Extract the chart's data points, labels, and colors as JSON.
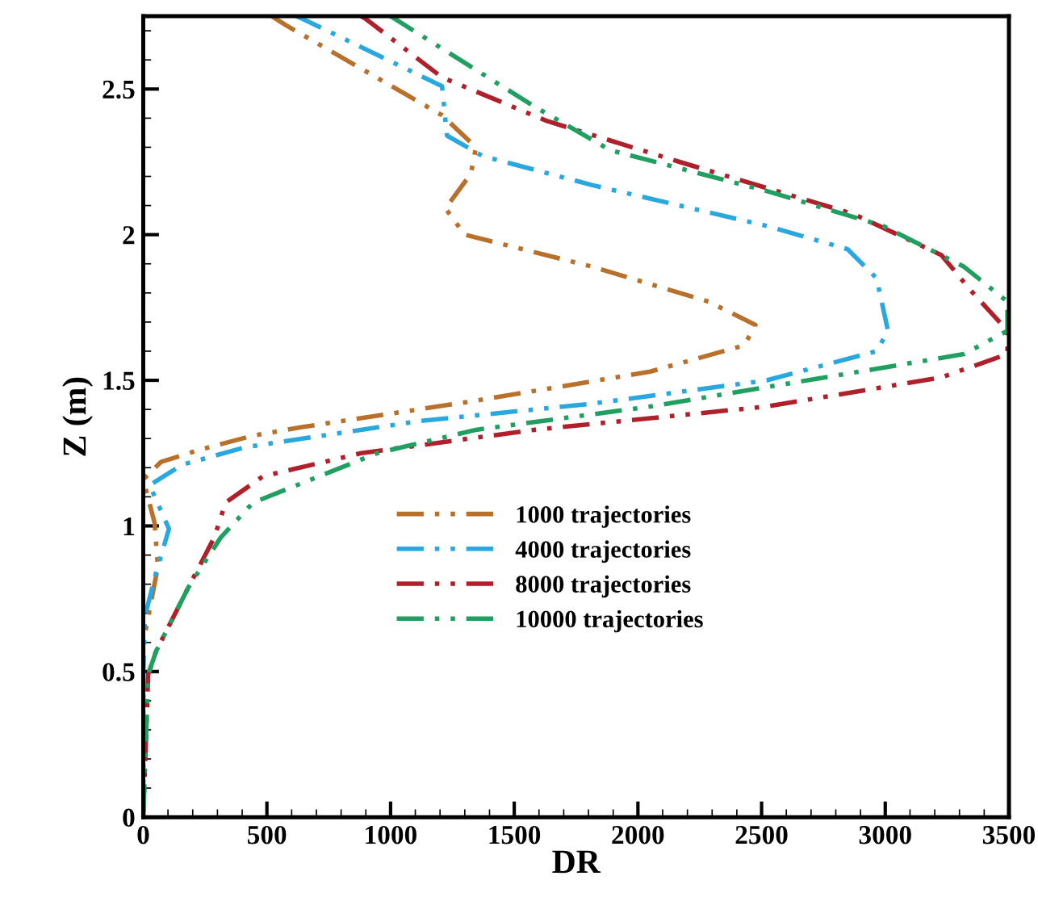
{
  "chart_data": {
    "type": "line",
    "xlabel": "DR",
    "ylabel": "Z (m)",
    "xlim": [
      0,
      3500
    ],
    "ylim": [
      0,
      2.75
    ],
    "xticks": [
      0,
      500,
      1000,
      1500,
      2000,
      2500,
      3000,
      3500
    ],
    "yticks": [
      0,
      0.5,
      1,
      1.5,
      2,
      2.5
    ],
    "grid": false,
    "legend": "center",
    "line_style": "dashed",
    "marker": "none",
    "series": [
      {
        "name": "1000 trajectories",
        "color": "#b8702a",
        "x": [
          520,
          575,
          1208,
          1345,
          1325,
          1222,
          1300,
          1816,
          2286,
          2475,
          2430,
          2050,
          1345,
          647,
          444,
          222,
          72,
          0,
          46,
          59,
          0,
          0
        ],
        "values": [
          2.75,
          2.72,
          2.41,
          2.3,
          2.21,
          2.09,
          2.0,
          1.89,
          1.77,
          1.69,
          1.62,
          1.53,
          1.43,
          1.34,
          1.31,
          1.26,
          1.22,
          1.16,
          1.01,
          0.86,
          0.6,
          0
        ]
      },
      {
        "name": "4000 trajectories",
        "color": "#29a8e0",
        "x": [
          620,
          647,
          1208,
          1228,
          1372,
          1816,
          2521,
          2848,
          2965,
          3011,
          2965,
          2521,
          1816,
          1117,
          411,
          157,
          26,
          104,
          52,
          7,
          0,
          0
        ],
        "values": [
          2.75,
          2.74,
          2.51,
          2.34,
          2.27,
          2.17,
          2.03,
          1.95,
          1.85,
          1.67,
          1.6,
          1.5,
          1.42,
          1.36,
          1.27,
          1.21,
          1.14,
          0.99,
          0.84,
          0.69,
          0.5,
          0
        ]
      },
      {
        "name": "8000 trajectories",
        "color": "#b0202a",
        "x": [
          880,
          901,
          1208,
          1633,
          2168,
          2874,
          3227,
          3344,
          3494,
          3494,
          3227,
          2521,
          1581,
          882,
          483,
          333,
          287,
          183,
          52,
          20,
          0
        ],
        "values": [
          2.75,
          2.74,
          2.54,
          2.39,
          2.25,
          2.07,
          1.93,
          1.81,
          1.67,
          1.59,
          1.51,
          1.41,
          1.33,
          1.25,
          1.17,
          1.08,
          0.96,
          0.79,
          0.57,
          0.49,
          0
        ]
      },
      {
        "name": "10000 trajectories",
        "color": "#20a060",
        "x": [
          1000,
          1019,
          1581,
          1888,
          2521,
          2991,
          3318,
          3494,
          3494,
          3318,
          2756,
          2050,
          1345,
          947,
          444,
          313,
          183,
          52,
          20,
          0
        ],
        "values": [
          2.75,
          2.74,
          2.44,
          2.29,
          2.15,
          2.03,
          1.89,
          1.77,
          1.67,
          1.59,
          1.51,
          1.41,
          1.33,
          1.25,
          1.08,
          0.96,
          0.79,
          0.57,
          0.49,
          0
        ]
      }
    ]
  }
}
